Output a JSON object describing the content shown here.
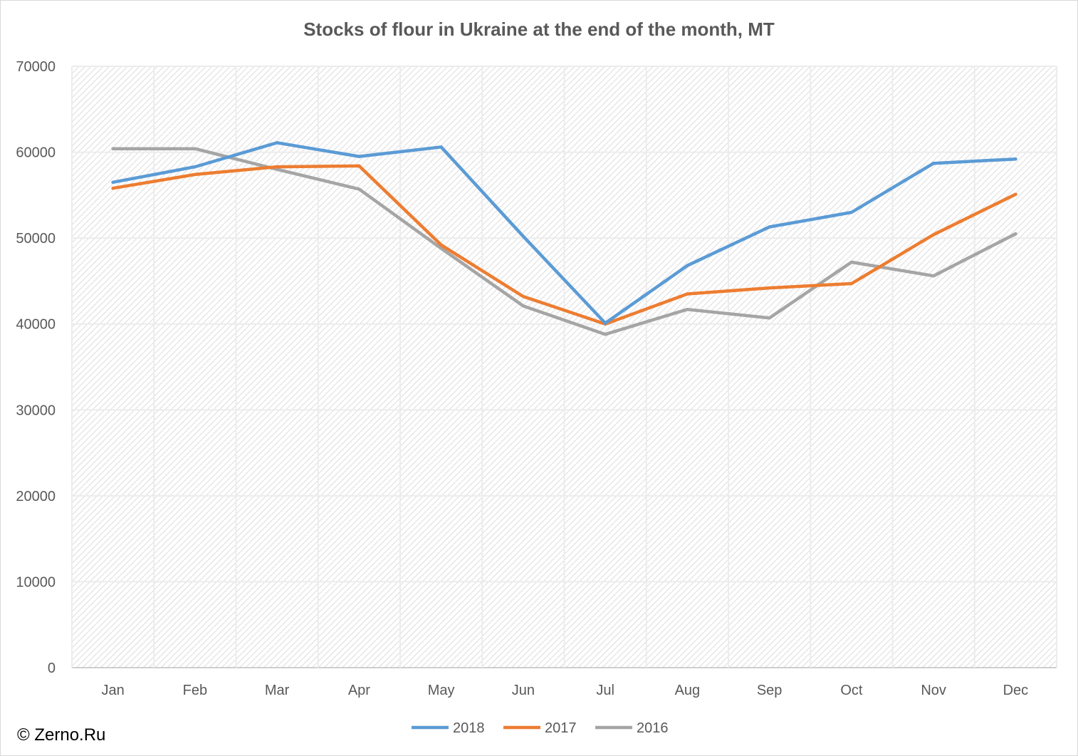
{
  "chart_data": {
    "type": "line",
    "title": "Stocks of flour in Ukraine at the end of the month, MT",
    "xlabel": "",
    "ylabel": "",
    "categories": [
      "Jan",
      "Feb",
      "Mar",
      "Apr",
      "May",
      "Jun",
      "Jul",
      "Aug",
      "Sep",
      "Oct",
      "Nov",
      "Dec"
    ],
    "ylim": [
      0,
      70000
    ],
    "yticks": [
      0,
      10000,
      20000,
      30000,
      40000,
      50000,
      60000,
      70000
    ],
    "grid": true,
    "legend_position": "bottom",
    "series": [
      {
        "name": "2018",
        "color": "#5b9bd5",
        "values": [
          56500,
          58300,
          61100,
          59500,
          60600,
          50200,
          40100,
          46800,
          51300,
          53000,
          58700,
          59200
        ]
      },
      {
        "name": "2017",
        "color": "#ed7d31",
        "values": [
          55800,
          57400,
          58300,
          58400,
          49200,
          43200,
          40000,
          43500,
          44200,
          44700,
          50400,
          55100
        ]
      },
      {
        "name": "2016",
        "color": "#a5a5a5",
        "values": [
          60400,
          60400,
          58000,
          55700,
          48800,
          42100,
          38800,
          41700,
          40700,
          47200,
          45600,
          50500
        ]
      }
    ]
  },
  "footer": {
    "copyright": "© Zerno.Ru"
  }
}
